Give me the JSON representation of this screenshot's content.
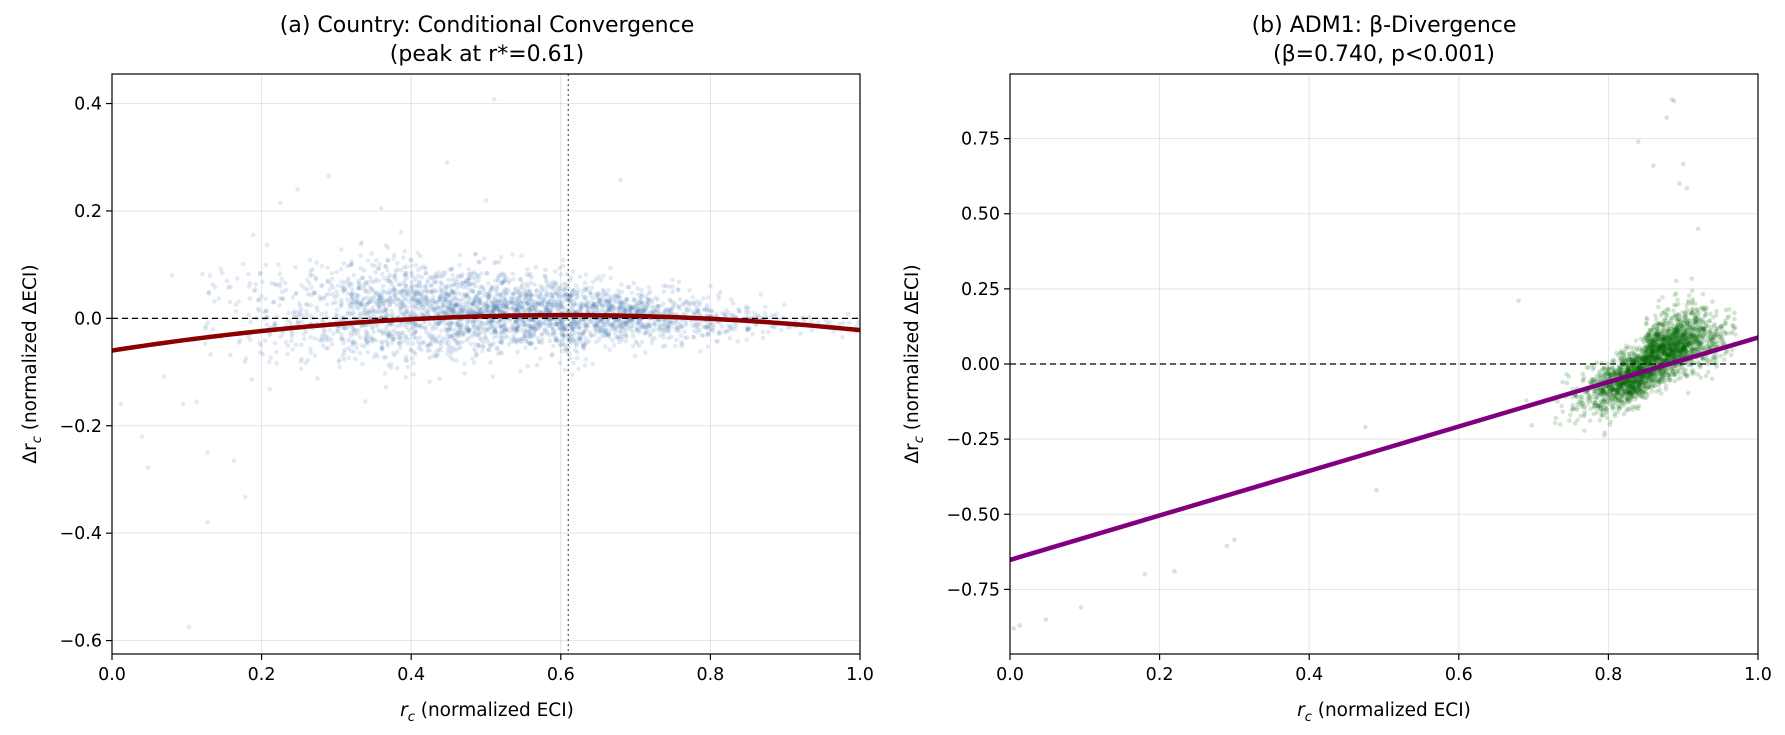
{
  "chart_data": [
    {
      "type": "scatter",
      "title": "(a) Country: Conditional Convergence",
      "subtitle": "(peak at r*=0.61)",
      "xlabel": "r_c (normalized ECI)",
      "xlabel_symbol": "r",
      "xlabel_sub": "c",
      "xlabel_rest": " (normalized ECI)",
      "ylabel": "Δr_c (normalized ΔECI)",
      "ylabel_symbol": "Δr",
      "ylabel_sub": "c",
      "ylabel_rest": " (normalized ΔECI)",
      "xlim": [
        0.0,
        1.0
      ],
      "ylim": [
        -0.625,
        0.455
      ],
      "xticks": [
        0.0,
        0.2,
        0.4,
        0.6,
        0.8,
        1.0
      ],
      "xtick_labels": [
        "0.0",
        "0.2",
        "0.4",
        "0.6",
        "0.8",
        "1.0"
      ],
      "yticks": [
        -0.6,
        -0.4,
        -0.2,
        0.0,
        0.2,
        0.4
      ],
      "ytick_labels": [
        "−0.6",
        "−0.4",
        "−0.2",
        "0.0",
        "0.2",
        "0.4"
      ],
      "grid": true,
      "point_color": "#4a7db5",
      "fit_color": "#8b0000",
      "fit_type": "quadratic",
      "fit_points": {
        "x": [
          0.0,
          0.61,
          1.0
        ],
        "y": [
          -0.06,
          0.006,
          -0.022
        ]
      },
      "vline_x": 0.61,
      "hline_y": 0.0,
      "scatter_cloud": {
        "n": 3200,
        "x_center": 0.52,
        "x_spread": 0.17,
        "x_range": [
          0.12,
          1.0
        ],
        "y_spread_low_x": 0.06,
        "y_spread_high_x": 0.012
      },
      "outliers": [
        [
          0.103,
          -0.575
        ],
        [
          0.128,
          -0.38
        ],
        [
          0.048,
          -0.278
        ],
        [
          0.04,
          -0.22
        ],
        [
          0.095,
          -0.16
        ],
        [
          0.012,
          -0.16
        ],
        [
          0.178,
          -0.333
        ],
        [
          0.163,
          -0.265
        ],
        [
          0.128,
          -0.25
        ],
        [
          0.113,
          -0.155
        ],
        [
          0.07,
          -0.108
        ],
        [
          0.08,
          0.08
        ],
        [
          0.248,
          0.24
        ],
        [
          0.29,
          0.265
        ],
        [
          0.511,
          0.408
        ],
        [
          0.448,
          0.29
        ],
        [
          0.68,
          0.258
        ],
        [
          0.225,
          0.215
        ],
        [
          0.5,
          0.22
        ],
        [
          0.36,
          0.205
        ]
      ]
    },
    {
      "type": "scatter",
      "title": "(b) ADM1: β-Divergence",
      "subtitle": "(β=0.740, p<0.001)",
      "xlabel": "r_c (normalized ECI)",
      "xlabel_symbol": "r",
      "xlabel_sub": "c",
      "xlabel_rest": " (normalized ECI)",
      "ylabel": "Δr_c (normalized ΔECI)",
      "ylabel_symbol": "Δr",
      "ylabel_sub": "c",
      "ylabel_rest": " (normalized ΔECI)",
      "xlim": [
        0.0,
        1.0
      ],
      "ylim": [
        -0.965,
        0.965
      ],
      "xticks": [
        0.0,
        0.2,
        0.4,
        0.6,
        0.8,
        1.0
      ],
      "xtick_labels": [
        "0.0",
        "0.2",
        "0.4",
        "0.6",
        "0.8",
        "1.0"
      ],
      "yticks": [
        -0.75,
        -0.5,
        -0.25,
        0.0,
        0.25,
        0.5,
        0.75
      ],
      "ytick_labels": [
        "−0.75",
        "−0.50",
        "−0.25",
        "0.00",
        "0.25",
        "0.50",
        "0.75"
      ],
      "grid": true,
      "point_color": "#006400",
      "fit_color": "#800080",
      "fit_type": "linear",
      "fit_line": {
        "slope": 0.74,
        "intercept": -0.652
      },
      "hline_y": 0.0,
      "scatter_cloud": {
        "n": 2600,
        "x_center": 0.86,
        "x_spread": 0.045,
        "x_range": [
          0.68,
          0.97
        ],
        "slope": 1.1,
        "y_spread": 0.045
      },
      "outliers": [
        [
          0.005,
          -0.88
        ],
        [
          0.013,
          -0.87
        ],
        [
          0.048,
          -0.85
        ],
        [
          0.095,
          -0.81
        ],
        [
          0.18,
          -0.7
        ],
        [
          0.22,
          -0.69
        ],
        [
          0.3,
          -0.585
        ],
        [
          0.29,
          -0.605
        ],
        [
          0.475,
          -0.21
        ],
        [
          0.49,
          -0.42
        ],
        [
          0.68,
          0.21
        ],
        [
          0.84,
          0.74
        ],
        [
          0.888,
          0.875
        ],
        [
          0.885,
          0.88
        ],
        [
          0.878,
          0.82
        ],
        [
          0.9,
          0.665
        ],
        [
          0.895,
          0.6
        ],
        [
          0.905,
          0.585
        ],
        [
          0.86,
          0.66
        ],
        [
          0.92,
          0.45
        ]
      ]
    }
  ]
}
